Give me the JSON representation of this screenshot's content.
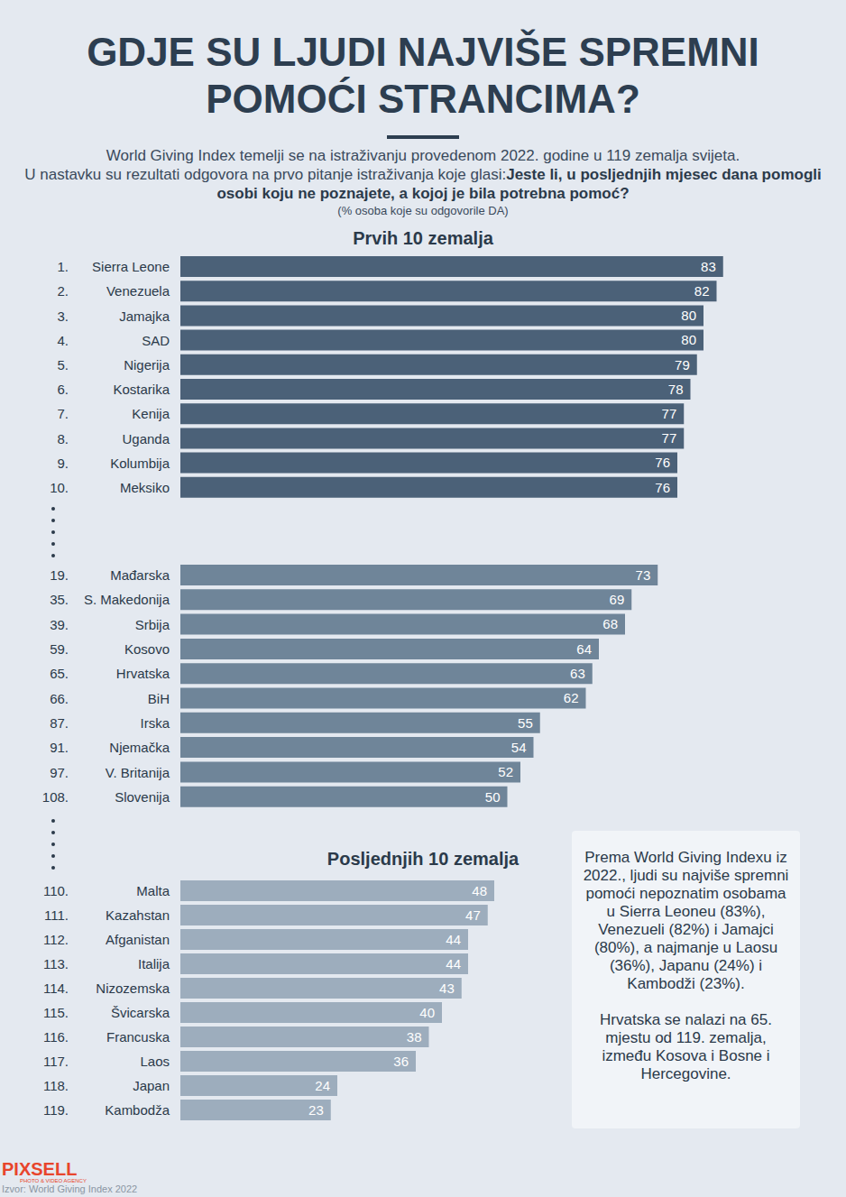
{
  "title": "GDJE SU LJUDI NAJVIŠE SPREMNI POMOĆI STRANCIMA?",
  "subtitle": {
    "intro": "World Giving Index temelji se na istraživanju provedenom 2022. godine u 119 zemalja svijeta.",
    "question_lead": "U nastavku su rezultati odgovora na prvo pitanje istraživanja koje glasi:",
    "question": "Jeste li, u posljednjih mjesec dana pomogli osobi koju ne poznajete, a kojoj je bila potrebna pomoć?",
    "note": "(% osoba koje su odgovorile DA)"
  },
  "chart_data": [
    {
      "type": "bar",
      "title": "Prvih 10 zemalja",
      "orientation": "horizontal",
      "categories": [
        "Sierra Leone",
        "Venezuela",
        "Jamajka",
        "SAD",
        "Nigerija",
        "Kostarika",
        "Kenija",
        "Uganda",
        "Kolumbija",
        "Meksiko"
      ],
      "ranks": [
        "1.",
        "2.",
        "3.",
        "4.",
        "5.",
        "6.",
        "7.",
        "8.",
        "9.",
        "10."
      ],
      "values": [
        83,
        82,
        80,
        80,
        79,
        78,
        77,
        77,
        76,
        76
      ],
      "color": "#4b6178",
      "xlim": [
        0,
        100
      ],
      "data_labels": true,
      "tick_labels": "y"
    },
    {
      "type": "bar",
      "orientation": "horizontal",
      "categories": [
        "Mađarska",
        "S. Makedonija",
        "Srbija",
        "Kosovo",
        "Hrvatska",
        "BiH",
        "Irska",
        "Njemačka",
        "V. Britanija",
        "Slovenija"
      ],
      "ranks": [
        "19.",
        "35.",
        "39.",
        "59.",
        "65.",
        "66.",
        "87.",
        "91.",
        "97.",
        "108."
      ],
      "values": [
        73,
        69,
        68,
        64,
        63,
        62,
        55,
        54,
        52,
        50
      ],
      "color": "#6f8599",
      "xlim": [
        0,
        100
      ],
      "data_labels": true,
      "tick_labels": "y"
    },
    {
      "type": "bar",
      "title": "Posljednjih 10 zemalja",
      "orientation": "horizontal",
      "categories": [
        "Malta",
        "Kazahstan",
        "Afganistan",
        "Italija",
        "Nizozemska",
        "Švicarska",
        "Francuska",
        "Laos",
        "Japan",
        "Kambodža"
      ],
      "ranks": [
        "110.",
        "111.",
        "112.",
        "113.",
        "114.",
        "115.",
        "116.",
        "117.",
        "118.",
        "119."
      ],
      "values": [
        48,
        47,
        44,
        44,
        43,
        40,
        38,
        36,
        24,
        23
      ],
      "color": "#9dadbd",
      "xlim": [
        0,
        100
      ],
      "data_labels": true,
      "tick_labels": "y"
    }
  ],
  "annotation": [
    "Prema World Giving Indexu iz 2022., ljudi su najviše spremni pomoći nepoznatim osobama u Sierra Leoneu (83%), Venezueli (82%) i Jamajci (80%), a najmanje u Laosu (36%), Japanu (24%) i Kambodži (23%).",
    "Hrvatska se nalazi na 65. mjestu od 119. zemalja, između Kosova i Bosne i Hercegovine."
  ],
  "logo": {
    "name": "PIXSELL",
    "tagline": "PHOTO & VIDEO AGENCY"
  },
  "source": "Izvor: World Giving Index 2022"
}
